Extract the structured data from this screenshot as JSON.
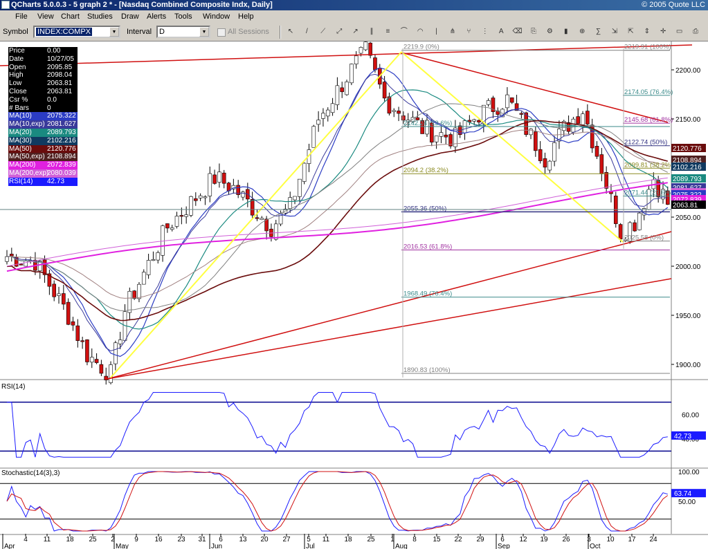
{
  "window": {
    "title": "QCharts 5.0.0.3 - 5 graph 2 * - [Nasdaq Combined Composite Indx, Daily]",
    "copyright": "© 2005 Quote LLC"
  },
  "menu": [
    "File",
    "View",
    "Chart",
    "Studies",
    "Draw",
    "Alerts",
    "Tools",
    "Window",
    "Help"
  ],
  "toolbar": {
    "symbol_label": "Symbol",
    "symbol_value": "INDEX:COMPX",
    "interval_label": "Interval",
    "interval_value": "D",
    "all_sessions_label": "All Sessions",
    "tool_icons": [
      "cursor-arrow-icon",
      "trendline-icon",
      "ray-line-icon",
      "extended-line-icon",
      "arrow-line-icon",
      "channel-icon",
      "fibonacci-retracement-icon",
      "fibonacci-fan-icon",
      "fibonacci-arc-icon",
      "fibonacci-time-icon",
      "gann-fan-icon",
      "andrews-pitchfork-icon",
      "cycle-lines-icon",
      "text-annotation-icon",
      "eraser-icon",
      "copy-icon",
      "properties-icon",
      "bar-chart-icon",
      "zoom-icon",
      "studies-icon",
      "compress-icon",
      "expand-icon",
      "scale-icon",
      "crosshair-icon",
      "page-icon",
      "print-icon"
    ]
  },
  "legend": [
    {
      "label": "Price",
      "value": "0.00",
      "bg": "#000000",
      "fg": "#ffffff"
    },
    {
      "label": "Date",
      "value": "10/27/05",
      "bg": "#000000",
      "fg": "#ffffff"
    },
    {
      "label": "Open",
      "value": "2095.85",
      "bg": "#000000",
      "fg": "#ffffff"
    },
    {
      "label": "High",
      "value": "2098.04",
      "bg": "#000000",
      "fg": "#ffffff"
    },
    {
      "label": "Low",
      "value": "2063.81",
      "bg": "#000000",
      "fg": "#ffffff"
    },
    {
      "label": "Close",
      "value": "2063.81",
      "bg": "#000000",
      "fg": "#ffffff"
    },
    {
      "label": "Csr %",
      "value": "0.0",
      "bg": "#000000",
      "fg": "#ffffff"
    },
    {
      "label": "# Bars",
      "value": "0",
      "bg": "#000000",
      "fg": "#ffffff"
    },
    {
      "label": "MA(10)",
      "value": "2075.322",
      "bg": "#2b3cc4",
      "fg": "#ffffff"
    },
    {
      "label": "MA(10,exp)",
      "value": "2081.627",
      "bg": "#3a3a9a",
      "fg": "#ffffff"
    },
    {
      "label": "MA(20)",
      "value": "2089.793",
      "bg": "#1a8a80",
      "fg": "#ffffff"
    },
    {
      "label": "MA(30)",
      "value": "2102.216",
      "bg": "#103a60",
      "fg": "#ffffff"
    },
    {
      "label": "MA(50)",
      "value": "2120.776",
      "bg": "#6a0c0c",
      "fg": "#ffffff"
    },
    {
      "label": "MA(50,exp)",
      "value": "2108.894",
      "bg": "#502020",
      "fg": "#ffffff"
    },
    {
      "label": "MA(200)",
      "value": "2072.839",
      "bg": "#e020e0",
      "fg": "#ffffff"
    },
    {
      "label": "MA(200,exp)",
      "value": "2080.039",
      "bg": "#d060d8",
      "fg": "#ffffff"
    },
    {
      "label": "RSI(14)",
      "value": "42.73",
      "bg": "#1a1aff",
      "fg": "#ffffff"
    }
  ],
  "price_axis": {
    "ticks": [
      "2200.00",
      "2150.00",
      "2100.00",
      "2050.00",
      "2000.00",
      "1950.00",
      "1900.00"
    ]
  },
  "fib_levels": [
    {
      "text": "2219.9 (0%)",
      "color": "#808080"
    },
    {
      "text": "2142.24 (23.6%)",
      "color": "#3a8a8a"
    },
    {
      "text": "2094.2 (38.2%)",
      "color": "#8a8a20"
    },
    {
      "text": "2055.36 (50%)",
      "color": "#303080"
    },
    {
      "text": "2016.53 (61.8%)",
      "color": "#a030a0"
    },
    {
      "text": "1968.49 (76.4%)",
      "color": "#3a8a8a"
    },
    {
      "text": "1890.83 (100%)",
      "color": "#808080"
    },
    {
      "text": "2219.91 (100%)",
      "color": "#808080"
    },
    {
      "text": "2174.05 (76.4%)",
      "color": "#3a8a8a"
    },
    {
      "text": "2145.68 (61.8%)",
      "color": "#a030a0"
    },
    {
      "text": "2122.74 (50%)",
      "color": "#303080"
    },
    {
      "text": "2099.81 (38.2%)",
      "color": "#8a8a20"
    },
    {
      "text": "2071.44 (23.6%)",
      "color": "#3a8a8a"
    },
    {
      "text": "2025.58 (0%)",
      "color": "#808080"
    }
  ],
  "right_labels": [
    {
      "text": "2120.776",
      "bg": "#6a0c0c"
    },
    {
      "text": "2108.894",
      "bg": "#502020"
    },
    {
      "text": "2102.216",
      "bg": "#103a60"
    },
    {
      "text": "2089.793",
      "bg": "#1a8a80"
    },
    {
      "text": "2081.627",
      "bg": "#3a3a9a"
    },
    {
      "text": "2080.039",
      "bg": "#d060d8"
    },
    {
      "text": "2075.322",
      "bg": "#2b3cc4"
    },
    {
      "text": "2072.839",
      "bg": "#e020e0"
    },
    {
      "text": "2063.81",
      "bg": "#000000"
    }
  ],
  "rsi": {
    "title": "RSI(14)",
    "ticks": [
      "60.00",
      "40.00"
    ],
    "value_label": "42.73"
  },
  "stochastic": {
    "title": "Stochastic(14(3),3)",
    "ticks": [
      "100.00",
      "50.00"
    ],
    "value_label": "63.74"
  },
  "time_axis": {
    "days": [
      "4",
      "11",
      "18",
      "25",
      "2",
      "9",
      "16",
      "23",
      "31",
      "6",
      "13",
      "20",
      "27",
      "5",
      "11",
      "18",
      "25",
      "1",
      "8",
      "15",
      "22",
      "29",
      "6",
      "12",
      "19",
      "26",
      "3",
      "10",
      "17",
      "24"
    ],
    "months": [
      "Apr",
      "May",
      "Jun",
      "Jul",
      "Aug",
      "Sep",
      "Oct"
    ]
  },
  "colors": {
    "up": "#ffffff",
    "down": "#d01010",
    "background": "#ffffff",
    "toolbar": "#d4d0c8",
    "trend": "#d01010",
    "fib": "#ffff40"
  }
}
